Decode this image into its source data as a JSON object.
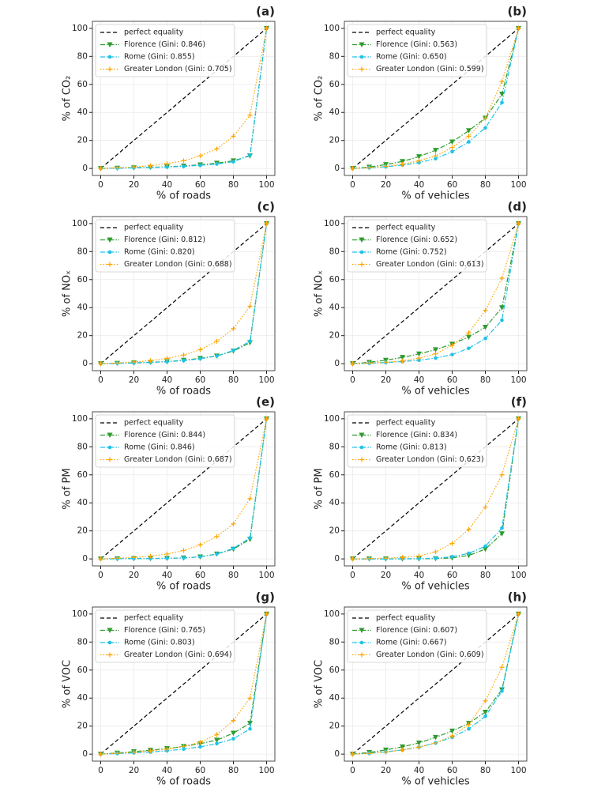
{
  "chart_data": [
    {
      "type": "line",
      "panel": "(a)",
      "xlabel": "% of roads",
      "ylabel": "% of CO₂",
      "x": [
        0,
        10,
        20,
        30,
        40,
        50,
        60,
        70,
        80,
        90,
        100
      ],
      "xlim": [
        -5,
        105
      ],
      "ylim": [
        -5,
        105
      ],
      "xticks": [
        0,
        20,
        40,
        60,
        80,
        100
      ],
      "yticks": [
        0,
        20,
        40,
        60,
        80,
        100
      ],
      "grid": true,
      "legend": "upper left",
      "series": [
        {
          "name": "perfect equality",
          "color": "#000000",
          "linestyle": "dashed",
          "marker": "none",
          "values": [
            0,
            10,
            20,
            30,
            40,
            50,
            60,
            70,
            80,
            90,
            100
          ]
        },
        {
          "name": "Florence (Gini: 0.846)",
          "color": "#2e9b2e",
          "linestyle": "dashdot",
          "marker": "triangle",
          "values": [
            0,
            0.2,
            0.5,
            0.8,
            1.2,
            1.8,
            2.6,
            3.8,
            5.5,
            9,
            100
          ]
        },
        {
          "name": "Rome (Gini: 0.855)",
          "color": "#1ec2e6",
          "linestyle": "dashdot",
          "marker": "circle",
          "values": [
            0,
            0.2,
            0.4,
            0.7,
            1,
            1.5,
            2.2,
            3.2,
            4.8,
            9.5,
            100
          ]
        },
        {
          "name": "Greater London (Gini: 0.705)",
          "color": "#ffa500",
          "linestyle": "dotted",
          "marker": "plus",
          "values": [
            0,
            0.5,
            1,
            2,
            3.5,
            5.5,
            9,
            14,
            23,
            38,
            100
          ]
        }
      ]
    },
    {
      "type": "line",
      "panel": "(b)",
      "xlabel": "% of vehicles",
      "ylabel": "% of CO₂",
      "x": [
        0,
        10,
        20,
        30,
        40,
        50,
        60,
        70,
        80,
        90,
        100
      ],
      "xlim": [
        -5,
        105
      ],
      "ylim": [
        -5,
        105
      ],
      "xticks": [
        0,
        20,
        40,
        60,
        80,
        100
      ],
      "yticks": [
        0,
        20,
        40,
        60,
        80,
        100
      ],
      "grid": true,
      "legend": "upper left",
      "series": [
        {
          "name": "perfect equality",
          "color": "#000000",
          "linestyle": "dashed",
          "marker": "none",
          "values": [
            0,
            10,
            20,
            30,
            40,
            50,
            60,
            70,
            80,
            90,
            100
          ]
        },
        {
          "name": "Florence (Gini: 0.563)",
          "color": "#2e9b2e",
          "linestyle": "dashdot",
          "marker": "triangle",
          "values": [
            0,
            1,
            2.8,
            5,
            8.5,
            13,
            19,
            27,
            36,
            53,
            100
          ]
        },
        {
          "name": "Rome (Gini: 0.650)",
          "color": "#1ec2e6",
          "linestyle": "dashdot",
          "marker": "circle",
          "values": [
            0,
            0.5,
            1.2,
            2.4,
            4.2,
            7,
            12,
            19,
            29,
            47,
            100
          ]
        },
        {
          "name": "Greater London (Gini: 0.599)",
          "color": "#ffa500",
          "linestyle": "dotted",
          "marker": "plus",
          "values": [
            0,
            0.5,
            1.5,
            3,
            5.5,
            9,
            15,
            23,
            36,
            62,
            100
          ]
        }
      ]
    },
    {
      "type": "line",
      "panel": "(c)",
      "xlabel": "% of roads",
      "ylabel": "% of NOₓ",
      "x": [
        0,
        10,
        20,
        30,
        40,
        50,
        60,
        70,
        80,
        90,
        100
      ],
      "xlim": [
        -5,
        105
      ],
      "ylim": [
        -5,
        105
      ],
      "xticks": [
        0,
        20,
        40,
        60,
        80,
        100
      ],
      "yticks": [
        0,
        20,
        40,
        60,
        80,
        100
      ],
      "grid": true,
      "legend": "upper left",
      "series": [
        {
          "name": "perfect equality",
          "color": "#000000",
          "linestyle": "dashed",
          "marker": "none",
          "values": [
            0,
            10,
            20,
            30,
            40,
            50,
            60,
            70,
            80,
            90,
            100
          ]
        },
        {
          "name": "Florence (Gini: 0.812)",
          "color": "#2e9b2e",
          "linestyle": "dashdot",
          "marker": "triangle",
          "values": [
            0,
            0.3,
            0.6,
            1,
            1.5,
            2.5,
            3.8,
            5.5,
            9,
            15,
            100
          ]
        },
        {
          "name": "Rome (Gini: 0.820)",
          "color": "#1ec2e6",
          "linestyle": "dashdot",
          "marker": "circle",
          "values": [
            0,
            0.3,
            0.5,
            0.9,
            1.4,
            2.2,
            3.5,
            5.5,
            9.5,
            16,
            100
          ]
        },
        {
          "name": "Greater London (Gini: 0.688)",
          "color": "#ffa500",
          "linestyle": "dotted",
          "marker": "plus",
          "values": [
            0,
            0.5,
            1.2,
            2.2,
            3.8,
            6.2,
            10,
            16,
            25,
            41,
            100
          ]
        }
      ]
    },
    {
      "type": "line",
      "panel": "(d)",
      "xlabel": "% of vehicles",
      "ylabel": "% of NOₓ",
      "x": [
        0,
        10,
        20,
        30,
        40,
        50,
        60,
        70,
        80,
        90,
        100
      ],
      "xlim": [
        -5,
        105
      ],
      "ylim": [
        -5,
        105
      ],
      "xticks": [
        0,
        20,
        40,
        60,
        80,
        100
      ],
      "yticks": [
        0,
        20,
        40,
        60,
        80,
        100
      ],
      "grid": true,
      "legend": "upper left",
      "series": [
        {
          "name": "perfect equality",
          "color": "#000000",
          "linestyle": "dashed",
          "marker": "none",
          "values": [
            0,
            10,
            20,
            30,
            40,
            50,
            60,
            70,
            80,
            90,
            100
          ]
        },
        {
          "name": "Florence (Gini: 0.652)",
          "color": "#2e9b2e",
          "linestyle": "dashdot",
          "marker": "triangle",
          "values": [
            0,
            1,
            2.5,
            4.5,
            7,
            10,
            14,
            19,
            26,
            40,
            100
          ]
        },
        {
          "name": "Rome (Gini: 0.752)",
          "color": "#1ec2e6",
          "linestyle": "dashdot",
          "marker": "circle",
          "values": [
            0,
            0.3,
            0.8,
            1.5,
            2.5,
            4,
            6.5,
            11,
            18,
            31,
            100
          ]
        },
        {
          "name": "Greater London (Gini: 0.613)",
          "color": "#ffa500",
          "linestyle": "dotted",
          "marker": "plus",
          "values": [
            0,
            0.5,
            1,
            2,
            4,
            7,
            13,
            22,
            38,
            61,
            100
          ]
        }
      ]
    },
    {
      "type": "line",
      "panel": "(e)",
      "xlabel": "% of roads",
      "ylabel": "% of PM",
      "x": [
        0,
        10,
        20,
        30,
        40,
        50,
        60,
        70,
        80,
        90,
        100
      ],
      "xlim": [
        -5,
        105
      ],
      "ylim": [
        -5,
        105
      ],
      "xticks": [
        0,
        20,
        40,
        60,
        80,
        100
      ],
      "yticks": [
        0,
        20,
        40,
        60,
        80,
        100
      ],
      "grid": true,
      "legend": "upper left",
      "series": [
        {
          "name": "perfect equality",
          "color": "#000000",
          "linestyle": "dashed",
          "marker": "none",
          "values": [
            0,
            10,
            20,
            30,
            40,
            50,
            60,
            70,
            80,
            90,
            100
          ]
        },
        {
          "name": "Florence (Gini: 0.844)",
          "color": "#2e9b2e",
          "linestyle": "dashdot",
          "marker": "triangle",
          "values": [
            0,
            0.1,
            0.2,
            0.3,
            0.4,
            0.7,
            1.5,
            3.5,
            7,
            14,
            100
          ]
        },
        {
          "name": "Rome (Gini: 0.846)",
          "color": "#1ec2e6",
          "linestyle": "dashdot",
          "marker": "circle",
          "values": [
            0,
            0.1,
            0.2,
            0.3,
            0.4,
            0.7,
            1.5,
            3.5,
            7.5,
            15,
            100
          ]
        },
        {
          "name": "Greater London (Gini: 0.687)",
          "color": "#ffa500",
          "linestyle": "dotted",
          "marker": "plus",
          "values": [
            0,
            0.5,
            1,
            2,
            3.5,
            6,
            10,
            16,
            25,
            43,
            100
          ]
        }
      ]
    },
    {
      "type": "line",
      "panel": "(f)",
      "xlabel": "% of vehicles",
      "ylabel": "% of PM",
      "x": [
        0,
        10,
        20,
        30,
        40,
        50,
        60,
        70,
        80,
        90,
        100
      ],
      "xlim": [
        -5,
        105
      ],
      "ylim": [
        -5,
        105
      ],
      "xticks": [
        0,
        20,
        40,
        60,
        80,
        100
      ],
      "yticks": [
        0,
        20,
        40,
        60,
        80,
        100
      ],
      "grid": true,
      "legend": "upper left",
      "series": [
        {
          "name": "perfect equality",
          "color": "#000000",
          "linestyle": "dashed",
          "marker": "none",
          "values": [
            0,
            10,
            20,
            30,
            40,
            50,
            60,
            70,
            80,
            90,
            100
          ]
        },
        {
          "name": "Florence (Gini: 0.834)",
          "color": "#2e9b2e",
          "linestyle": "dashdot",
          "marker": "triangle",
          "values": [
            0,
            0,
            0,
            0,
            0.1,
            0.2,
            0.7,
            2.5,
            7,
            18,
            100
          ]
        },
        {
          "name": "Rome (Gini: 0.813)",
          "color": "#1ec2e6",
          "linestyle": "dashdot",
          "marker": "circle",
          "values": [
            0,
            0,
            0,
            0.1,
            0.2,
            0.5,
            1.5,
            4,
            9,
            22,
            100
          ]
        },
        {
          "name": "Greater London (Gini: 0.623)",
          "color": "#ffa500",
          "linestyle": "dotted",
          "marker": "plus",
          "values": [
            0,
            0.2,
            0.5,
            1,
            2,
            5,
            11,
            21,
            37,
            60,
            100
          ]
        }
      ]
    },
    {
      "type": "line",
      "panel": "(g)",
      "xlabel": "% of roads",
      "ylabel": "% of VOC",
      "x": [
        0,
        10,
        20,
        30,
        40,
        50,
        60,
        70,
        80,
        90,
        100
      ],
      "xlim": [
        -5,
        105
      ],
      "ylim": [
        -5,
        105
      ],
      "xticks": [
        0,
        20,
        40,
        60,
        80,
        100
      ],
      "yticks": [
        0,
        20,
        40,
        60,
        80,
        100
      ],
      "grid": true,
      "legend": "upper left",
      "series": [
        {
          "name": "perfect equality",
          "color": "#000000",
          "linestyle": "dashed",
          "marker": "none",
          "values": [
            0,
            10,
            20,
            30,
            40,
            50,
            60,
            70,
            80,
            90,
            100
          ]
        },
        {
          "name": "Florence (Gini: 0.765)",
          "color": "#2e9b2e",
          "linestyle": "dashdot",
          "marker": "triangle",
          "values": [
            0,
            0.8,
            1.8,
            2.8,
            4,
            5.5,
            7.5,
            10,
            15,
            22,
            100
          ]
        },
        {
          "name": "Rome (Gini: 0.803)",
          "color": "#1ec2e6",
          "linestyle": "dashdot",
          "marker": "circle",
          "values": [
            0,
            0.4,
            0.9,
            1.5,
            2.4,
            3.6,
            5.2,
            7.5,
            11,
            18,
            100
          ]
        },
        {
          "name": "Greater London (Gini: 0.694)",
          "color": "#ffa500",
          "linestyle": "dotted",
          "marker": "plus",
          "values": [
            0,
            0.6,
            1.3,
            2.3,
            3.6,
            5.6,
            8.5,
            14,
            24,
            40,
            100
          ]
        }
      ]
    },
    {
      "type": "line",
      "panel": "(h)",
      "xlabel": "% of vehicles",
      "ylabel": "% of VOC",
      "x": [
        0,
        10,
        20,
        30,
        40,
        50,
        60,
        70,
        80,
        90,
        100
      ],
      "xlim": [
        -5,
        105
      ],
      "ylim": [
        -5,
        105
      ],
      "xticks": [
        0,
        20,
        40,
        60,
        80,
        100
      ],
      "yticks": [
        0,
        20,
        40,
        60,
        80,
        100
      ],
      "grid": true,
      "legend": "upper left",
      "series": [
        {
          "name": "perfect equality",
          "color": "#000000",
          "linestyle": "dashed",
          "marker": "none",
          "values": [
            0,
            10,
            20,
            30,
            40,
            50,
            60,
            70,
            80,
            90,
            100
          ]
        },
        {
          "name": "Florence (Gini: 0.607)",
          "color": "#2e9b2e",
          "linestyle": "dashdot",
          "marker": "triangle",
          "values": [
            0,
            1.2,
            3,
            5.2,
            8,
            12,
            16.5,
            22,
            30,
            46,
            100
          ]
        },
        {
          "name": "Rome (Gini: 0.667)",
          "color": "#1ec2e6",
          "linestyle": "dashdot",
          "marker": "circle",
          "values": [
            0,
            0.6,
            1.6,
            3,
            5,
            8,
            12,
            18,
            27,
            45,
            100
          ]
        },
        {
          "name": "Greater London (Gini: 0.609)",
          "color": "#ffa500",
          "linestyle": "dotted",
          "marker": "plus",
          "values": [
            0,
            0.5,
            1.5,
            3,
            5,
            8,
            13,
            21,
            38,
            62,
            100
          ]
        }
      ]
    }
  ]
}
